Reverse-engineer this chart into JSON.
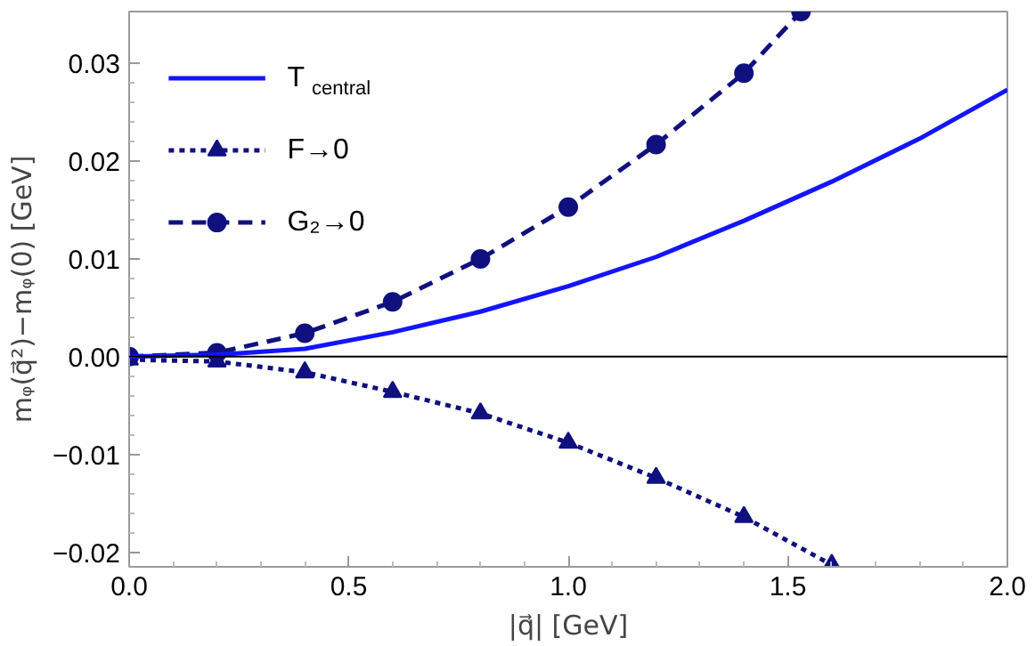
{
  "chart_data": {
    "type": "line",
    "xlabel": "|q⃗| [GeV]",
    "ylabel": "mᵩ(q⃗²)−mᵩ(0) [GeV]",
    "xlim": [
      0,
      2
    ],
    "ylim": [
      -0.0215,
      0.0353
    ],
    "xticks": [
      {
        "value": 0,
        "label": "0.0"
      },
      {
        "value": 0.5,
        "label": "0.5"
      },
      {
        "value": 1,
        "label": "1.0"
      },
      {
        "value": 1.5,
        "label": "1.5"
      },
      {
        "value": 2,
        "label": "2.0"
      }
    ],
    "yticks": [
      {
        "value": -0.02,
        "label": "−0.02"
      },
      {
        "value": -0.01,
        "label": "−0.01"
      },
      {
        "value": 0,
        "label": "0.00"
      },
      {
        "value": 0.01,
        "label": "0.01"
      },
      {
        "value": 0.02,
        "label": "0.02"
      },
      {
        "value": 0.03,
        "label": "0.03"
      }
    ],
    "grid": false,
    "legend": "top left",
    "ref_lines": [
      {
        "axis": "y",
        "value": 0,
        "color": "#000000",
        "line_style": "solid"
      }
    ],
    "series": [
      {
        "name": "T$_{central}$",
        "color": "#1414ff",
        "line_style": "solid",
        "marker": "none",
        "x": [
          0,
          0.2,
          0.4,
          0.6,
          0.8,
          1.0,
          1.2,
          1.4,
          1.6,
          1.8,
          2.0
        ],
        "values": [
          0,
          0.0002,
          0.0008,
          0.0025,
          0.0046,
          0.0072,
          0.0102,
          0.0139,
          0.0179,
          0.0223,
          0.0273
        ]
      },
      {
        "name": "F→0",
        "color": "#10107f",
        "line_style": "dotted",
        "marker": "triangle",
        "x": [
          0,
          0.2,
          0.4,
          0.6,
          0.8,
          1.0,
          1.2,
          1.4,
          1.6
        ],
        "values": [
          -0.0003,
          -0.0005,
          -0.0016,
          -0.0036,
          -0.0058,
          -0.0088,
          -0.0124,
          -0.0164,
          -0.0213
        ]
      },
      {
        "name": "G₂→0",
        "color": "#10107f",
        "line_style": "dashed",
        "marker": "circle",
        "x": [
          0,
          0.2,
          0.4,
          0.6,
          0.8,
          1.0,
          1.2,
          1.4,
          1.53
        ],
        "values": [
          0,
          0.0004,
          0.0024,
          0.0056,
          0.01,
          0.0153,
          0.0217,
          0.029,
          0.0353
        ]
      }
    ]
  }
}
